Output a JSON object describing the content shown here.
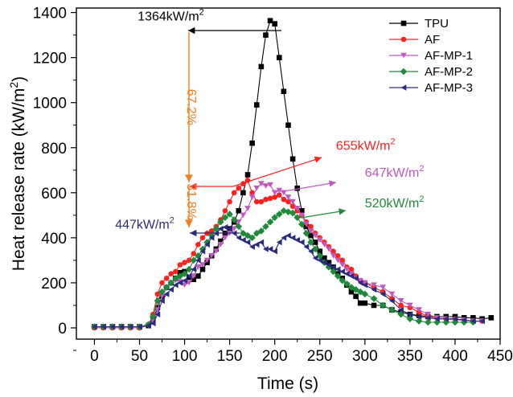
{
  "chart_data": {
    "type": "line",
    "title": "",
    "xlabel": "Time (s)",
    "ylabel": "Heat release rate (kW/m",
    "ylabel_sup": "2",
    "ylabel_end": ")",
    "xlim": [
      -20,
      450
    ],
    "ylim": [
      -50,
      1420
    ],
    "x_ticks": [
      0,
      50,
      100,
      150,
      200,
      250,
      300,
      350,
      400,
      450
    ],
    "y_ticks": [
      0,
      200,
      400,
      600,
      800,
      1000,
      1200,
      1400
    ],
    "grid": false,
    "legend_position": "top-right",
    "series": [
      {
        "name": "TPU",
        "color": "#000000",
        "marker": "square",
        "x": [
          0,
          10,
          20,
          30,
          40,
          50,
          60,
          65,
          70,
          75,
          80,
          85,
          90,
          95,
          100,
          105,
          110,
          115,
          120,
          125,
          130,
          135,
          140,
          145,
          150,
          155,
          160,
          165,
          170,
          175,
          180,
          185,
          190,
          195,
          200,
          205,
          210,
          215,
          220,
          225,
          230,
          235,
          240,
          245,
          250,
          255,
          260,
          265,
          270,
          275,
          280,
          285,
          290,
          295,
          300,
          310,
          320,
          330,
          340,
          350,
          360,
          370,
          380,
          390,
          400,
          410,
          420,
          430,
          440
        ],
        "y": [
          5,
          5,
          5,
          5,
          5,
          5,
          10,
          40,
          90,
          140,
          180,
          200,
          220,
          245,
          250,
          225,
          215,
          230,
          260,
          290,
          320,
          350,
          385,
          420,
          440,
          470,
          520,
          600,
          680,
          820,
          990,
          1160,
          1300,
          1364,
          1350,
          1200,
          1050,
          900,
          750,
          620,
          520,
          450,
          410,
          380,
          340,
          310,
          290,
          270,
          240,
          220,
          190,
          160,
          140,
          110,
          110,
          100,
          100,
          80,
          70,
          60,
          55,
          50,
          50,
          50,
          50,
          45,
          45,
          40,
          45
        ]
      },
      {
        "name": "AF",
        "color": "#ff2020",
        "marker": "circle",
        "x": [
          0,
          10,
          20,
          30,
          40,
          50,
          60,
          65,
          70,
          75,
          80,
          85,
          90,
          95,
          100,
          105,
          110,
          115,
          120,
          125,
          130,
          135,
          140,
          145,
          150,
          155,
          160,
          165,
          170,
          175,
          180,
          185,
          190,
          195,
          200,
          205,
          210,
          215,
          220,
          225,
          230,
          235,
          240,
          245,
          250,
          255,
          260,
          265,
          270,
          275,
          280,
          285,
          290,
          295,
          300,
          310,
          320,
          330,
          340,
          350,
          360,
          370,
          380,
          390,
          400,
          410,
          420,
          430
        ],
        "y": [
          0,
          0,
          0,
          0,
          0,
          0,
          15,
          60,
          150,
          200,
          220,
          240,
          250,
          280,
          290,
          300,
          330,
          370,
          400,
          420,
          430,
          450,
          480,
          520,
          560,
          600,
          620,
          640,
          655,
          600,
          560,
          560,
          570,
          575,
          580,
          590,
          570,
          560,
          540,
          520,
          500,
          470,
          450,
          420,
          400,
          380,
          360,
          340,
          320,
          300,
          270,
          260,
          230,
          210,
          200,
          180,
          160,
          130,
          100,
          90,
          70,
          50,
          45,
          40,
          40,
          35,
          30,
          30
        ]
      },
      {
        "name": "AF-MP-1",
        "color": "#c157c1",
        "marker": "triangle-down",
        "x": [
          0,
          10,
          20,
          30,
          40,
          50,
          60,
          65,
          70,
          75,
          80,
          85,
          90,
          95,
          100,
          105,
          110,
          115,
          120,
          125,
          130,
          135,
          140,
          145,
          150,
          155,
          160,
          165,
          170,
          175,
          180,
          185,
          190,
          195,
          200,
          205,
          210,
          215,
          220,
          225,
          230,
          235,
          240,
          245,
          250,
          255,
          260,
          265,
          270,
          275,
          280,
          285,
          290,
          295,
          300,
          310,
          320,
          330,
          340,
          350,
          360,
          370,
          380,
          390,
          400,
          410,
          420,
          430
        ],
        "y": [
          0,
          0,
          0,
          0,
          0,
          0,
          10,
          30,
          80,
          140,
          180,
          200,
          210,
          205,
          190,
          200,
          230,
          270,
          280,
          300,
          320,
          340,
          370,
          400,
          420,
          440,
          470,
          500,
          530,
          580,
          620,
          640,
          630,
          635,
          600,
          610,
          600,
          580,
          560,
          530,
          500,
          460,
          430,
          410,
          390,
          370,
          350,
          320,
          300,
          280,
          260,
          240,
          220,
          210,
          200,
          190,
          180,
          150,
          120,
          100,
          80,
          60,
          45,
          40,
          35,
          35,
          30,
          30
        ]
      },
      {
        "name": "AF-MP-2",
        "color": "#1f8a3a",
        "marker": "diamond",
        "x": [
          0,
          10,
          20,
          30,
          40,
          50,
          60,
          65,
          70,
          75,
          80,
          85,
          90,
          95,
          100,
          105,
          110,
          115,
          120,
          125,
          130,
          135,
          140,
          145,
          150,
          155,
          160,
          165,
          170,
          175,
          180,
          185,
          190,
          195,
          200,
          205,
          210,
          215,
          220,
          225,
          230,
          235,
          240,
          245,
          250,
          255,
          260,
          265,
          270,
          275,
          280,
          285,
          290,
          295,
          300,
          310,
          320,
          330,
          340,
          350,
          360,
          370,
          380,
          390,
          400,
          410,
          420
        ],
        "y": [
          5,
          5,
          5,
          5,
          5,
          5,
          15,
          50,
          120,
          160,
          180,
          200,
          220,
          230,
          240,
          260,
          300,
          320,
          350,
          380,
          410,
          440,
          470,
          490,
          505,
          480,
          450,
          420,
          410,
          400,
          420,
          430,
          450,
          470,
          490,
          505,
          520,
          515,
          510,
          490,
          460,
          420,
          380,
          350,
          320,
          290,
          270,
          250,
          230,
          210,
          195,
          180,
          170,
          160,
          150,
          130,
          100,
          80,
          60,
          40,
          30,
          25,
          25,
          25,
          25,
          25,
          25
        ]
      },
      {
        "name": "AF-MP-3",
        "color": "#2a2a7f",
        "marker": "triangle-left",
        "x": [
          0,
          10,
          20,
          30,
          40,
          50,
          60,
          65,
          70,
          75,
          80,
          85,
          90,
          95,
          100,
          105,
          110,
          115,
          120,
          125,
          130,
          135,
          140,
          145,
          150,
          155,
          160,
          165,
          170,
          175,
          180,
          185,
          190,
          195,
          200,
          205,
          210,
          215,
          220,
          225,
          230,
          235,
          240,
          245,
          250,
          255,
          260,
          265,
          270,
          275,
          280,
          285,
          290,
          295,
          300,
          310,
          320,
          330,
          340,
          350,
          360,
          370,
          380,
          390,
          400,
          410,
          420,
          430
        ],
        "y": [
          5,
          5,
          5,
          5,
          5,
          5,
          10,
          20,
          60,
          120,
          150,
          170,
          190,
          200,
          210,
          230,
          260,
          300,
          340,
          370,
          400,
          420,
          440,
          447,
          440,
          420,
          400,
          390,
          380,
          360,
          370,
          380,
          350,
          350,
          340,
          380,
          400,
          410,
          400,
          390,
          380,
          360,
          340,
          310,
          300,
          290,
          280,
          270,
          260,
          250,
          240,
          230,
          220,
          200,
          190,
          170,
          150,
          120,
          80,
          60,
          50,
          45,
          40,
          40,
          40,
          35,
          30,
          30
        ]
      }
    ],
    "annotations": [
      {
        "text": "1364kW/m",
        "sup": "2",
        "color": "#000000",
        "x": 48,
        "y": 1364
      },
      {
        "text": "655kW/m",
        "sup": "2",
        "color": "#ff2020",
        "x": 268,
        "y": 790
      },
      {
        "text": "647kW/m",
        "sup": "2",
        "color": "#c157c1",
        "x": 300,
        "y": 670
      },
      {
        "text": "520kW/m",
        "sup": "2",
        "color": "#1f8a3a",
        "x": 300,
        "y": 535
      },
      {
        "text": "447kW/m",
        "sup": "2",
        "color": "#2a2a7f",
        "x": 23,
        "y": 440
      },
      {
        "text": "67.2%",
        "color": "#f08020",
        "x": 103,
        "y": 980,
        "rotate": 90
      },
      {
        "text": "31.8%",
        "color": "#f08020",
        "x": 103,
        "y": 560,
        "rotate": 90
      }
    ]
  }
}
